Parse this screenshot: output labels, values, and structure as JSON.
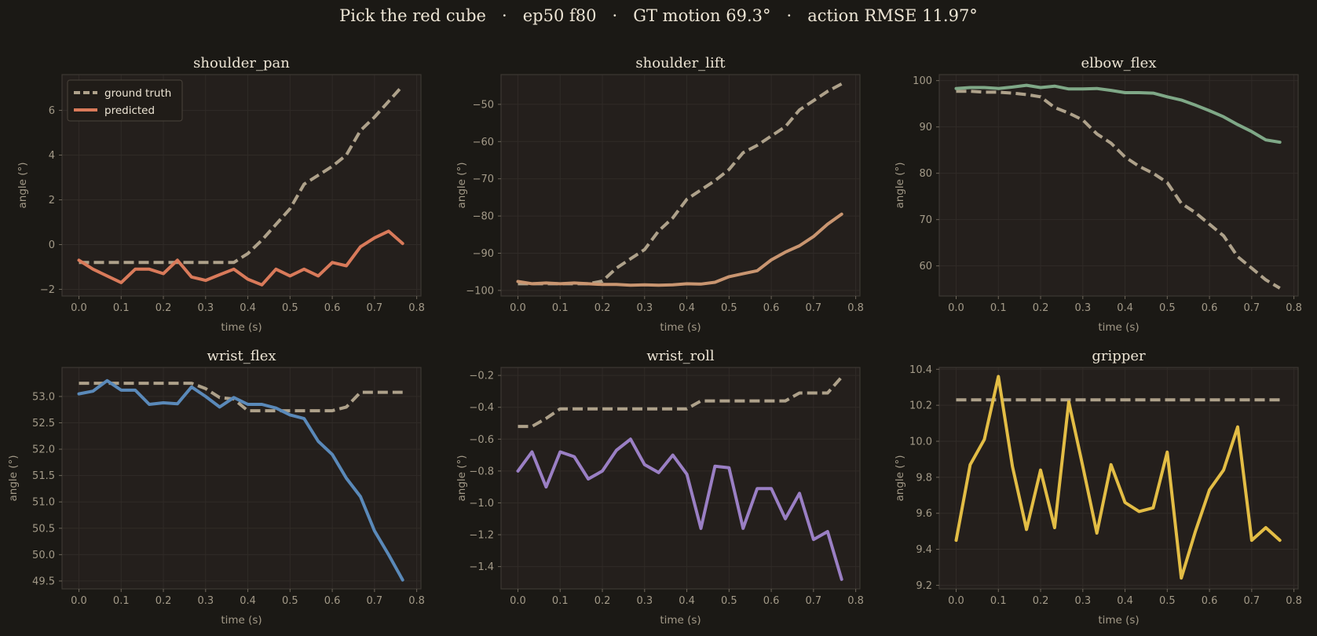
{
  "figure": {
    "suptitle": "Pick the red cube   ·   ep50 f80   ·   GT motion 69.3°   ·   action RMSE 11.97°"
  },
  "colors": {
    "figure_bg": "#1b1915",
    "axes_bg": "#241f1c",
    "spine": "#3d3833",
    "grid": "#302b27",
    "ground_truth": "#aea18a",
    "text": "#ece4d4",
    "muted_text": "#a39a88"
  },
  "legend": {
    "ground_truth": "ground truth",
    "predicted": "predicted"
  },
  "chart_data": [
    {
      "type": "line",
      "title": "shoulder_pan",
      "xlabel": "time (s)",
      "ylabel": "angle (°)",
      "xlim": [
        -0.04,
        0.81
      ],
      "ylim": [
        -2.3,
        7.6
      ],
      "xticks": [
        0.0,
        0.1,
        0.2,
        0.3,
        0.4,
        0.5,
        0.6,
        0.7,
        0.8
      ],
      "yticks": [
        -2,
        0,
        2,
        4,
        6
      ],
      "ytick_decimals": 0,
      "grid": true,
      "legend": "top-left",
      "series": [
        {
          "name": "ground truth",
          "role": "ground_truth",
          "color": "#aea18a",
          "style": "dashed",
          "x": [
            0.0,
            0.0333,
            0.0667,
            0.1,
            0.1333,
            0.1667,
            0.2,
            0.2333,
            0.2667,
            0.3,
            0.3333,
            0.3667,
            0.4,
            0.4333,
            0.4667,
            0.5,
            0.5333,
            0.5667,
            0.6,
            0.6333,
            0.6667,
            0.7,
            0.7333,
            0.7667
          ],
          "values": [
            -0.8,
            -0.8,
            -0.8,
            -0.8,
            -0.8,
            -0.8,
            -0.8,
            -0.8,
            -0.8,
            -0.8,
            -0.8,
            -0.8,
            -0.4,
            0.2,
            0.9,
            1.6,
            2.7,
            3.1,
            3.5,
            4.0,
            5.1,
            5.7,
            6.4,
            7.1
          ]
        },
        {
          "name": "predicted",
          "role": "predicted",
          "color": "#d97a5a",
          "style": "solid",
          "x": [
            0.0,
            0.0333,
            0.0667,
            0.1,
            0.1333,
            0.1667,
            0.2,
            0.2333,
            0.2667,
            0.3,
            0.3333,
            0.3667,
            0.4,
            0.4333,
            0.4667,
            0.5,
            0.5333,
            0.5667,
            0.6,
            0.6333,
            0.6667,
            0.7,
            0.7333,
            0.7667
          ],
          "values": [
            -0.7,
            -1.1,
            -1.4,
            -1.7,
            -1.1,
            -1.1,
            -1.3,
            -0.7,
            -1.45,
            -1.6,
            -1.35,
            -1.1,
            -1.55,
            -1.8,
            -1.1,
            -1.4,
            -1.1,
            -1.4,
            -0.8,
            -0.95,
            -0.1,
            0.3,
            0.6,
            0.05
          ]
        }
      ]
    },
    {
      "type": "line",
      "title": "shoulder_lift",
      "xlabel": "time (s)",
      "ylabel": "angle (°)",
      "xlim": [
        -0.04,
        0.81
      ],
      "ylim": [
        -101.5,
        -42
      ],
      "xticks": [
        0.0,
        0.1,
        0.2,
        0.3,
        0.4,
        0.5,
        0.6,
        0.7,
        0.8
      ],
      "yticks": [
        -100,
        -90,
        -80,
        -70,
        -60,
        -50
      ],
      "ytick_decimals": 0,
      "grid": true,
      "series": [
        {
          "name": "ground truth",
          "role": "ground_truth",
          "color": "#aea18a",
          "style": "dashed",
          "x": [
            0.0,
            0.0333,
            0.0667,
            0.1,
            0.1333,
            0.1667,
            0.2,
            0.2333,
            0.2667,
            0.3,
            0.3333,
            0.3667,
            0.4,
            0.4333,
            0.4667,
            0.5,
            0.5333,
            0.5667,
            0.6,
            0.6333,
            0.6667,
            0.7,
            0.7333,
            0.7667
          ],
          "values": [
            -98.2,
            -98.2,
            -98.2,
            -98.2,
            -98.2,
            -98.2,
            -97.5,
            -94.0,
            -91.5,
            -89.0,
            -84.0,
            -80.5,
            -75.5,
            -73.0,
            -70.5,
            -67.5,
            -63.0,
            -61.0,
            -58.5,
            -56.0,
            -51.5,
            -49.0,
            -46.5,
            -44.5
          ]
        },
        {
          "name": "predicted",
          "role": "predicted",
          "color": "#c99570",
          "style": "solid",
          "x": [
            0.0,
            0.0333,
            0.0667,
            0.1,
            0.1333,
            0.1667,
            0.2,
            0.2333,
            0.2667,
            0.3,
            0.3333,
            0.3667,
            0.4,
            0.4333,
            0.4667,
            0.5,
            0.5333,
            0.5667,
            0.6,
            0.6333,
            0.6667,
            0.7,
            0.7333,
            0.7667
          ],
          "values": [
            -97.6,
            -98.2,
            -98.0,
            -98.2,
            -98.0,
            -98.2,
            -98.4,
            -98.4,
            -98.6,
            -98.5,
            -98.6,
            -98.5,
            -98.2,
            -98.3,
            -97.8,
            -96.3,
            -95.5,
            -94.7,
            -91.8,
            -89.7,
            -88.0,
            -85.5,
            -82.2,
            -79.5
          ]
        }
      ]
    },
    {
      "type": "line",
      "title": "elbow_flex",
      "xlabel": "time (s)",
      "ylabel": "angle (°)",
      "xlim": [
        -0.04,
        0.81
      ],
      "ylim": [
        53.5,
        101.3
      ],
      "xticks": [
        0.0,
        0.1,
        0.2,
        0.3,
        0.4,
        0.5,
        0.6,
        0.7,
        0.8
      ],
      "yticks": [
        60,
        70,
        80,
        90,
        100
      ],
      "ytick_decimals": 0,
      "grid": true,
      "series": [
        {
          "name": "ground truth",
          "role": "ground_truth",
          "color": "#aea18a",
          "style": "dashed",
          "x": [
            0.0,
            0.0333,
            0.0667,
            0.1,
            0.1333,
            0.1667,
            0.2,
            0.2333,
            0.2667,
            0.3,
            0.3333,
            0.3667,
            0.4,
            0.4333,
            0.4667,
            0.5,
            0.5333,
            0.5667,
            0.6,
            0.6333,
            0.6667,
            0.7,
            0.7333,
            0.7667
          ],
          "values": [
            97.7,
            97.7,
            97.5,
            97.5,
            97.3,
            97.0,
            96.5,
            94.2,
            93.0,
            91.5,
            88.5,
            86.5,
            83.5,
            81.5,
            80.0,
            78.0,
            73.5,
            71.5,
            69.0,
            66.5,
            62.0,
            59.5,
            57.0,
            55.2
          ]
        },
        {
          "name": "predicted",
          "role": "predicted",
          "color": "#7fa887",
          "style": "solid",
          "x": [
            0.0,
            0.0333,
            0.0667,
            0.1,
            0.1333,
            0.1667,
            0.2,
            0.2333,
            0.2667,
            0.3,
            0.3333,
            0.3667,
            0.4,
            0.4333,
            0.4667,
            0.5,
            0.5333,
            0.5667,
            0.6,
            0.6333,
            0.6667,
            0.7,
            0.7333,
            0.7667
          ],
          "values": [
            98.3,
            98.5,
            98.5,
            98.3,
            98.6,
            99.0,
            98.5,
            98.8,
            98.2,
            98.2,
            98.3,
            97.9,
            97.4,
            97.4,
            97.3,
            96.5,
            95.8,
            94.7,
            93.5,
            92.2,
            90.5,
            89.0,
            87.2,
            86.7
          ]
        }
      ]
    },
    {
      "type": "line",
      "title": "wrist_flex",
      "xlabel": "time (s)",
      "ylabel": "angle (°)",
      "xlim": [
        -0.04,
        0.81
      ],
      "ylim": [
        49.35,
        53.55
      ],
      "xticks": [
        0.0,
        0.1,
        0.2,
        0.3,
        0.4,
        0.5,
        0.6,
        0.7,
        0.8
      ],
      "yticks": [
        49.5,
        50.0,
        50.5,
        51.0,
        51.5,
        52.0,
        52.5,
        53.0
      ],
      "ytick_decimals": 1,
      "grid": true,
      "series": [
        {
          "name": "ground truth",
          "role": "ground_truth",
          "color": "#aea18a",
          "style": "dashed",
          "x": [
            0.0,
            0.0333,
            0.0667,
            0.1,
            0.1333,
            0.1667,
            0.2,
            0.2333,
            0.2667,
            0.3,
            0.3333,
            0.3667,
            0.4,
            0.4333,
            0.4667,
            0.5,
            0.5333,
            0.5667,
            0.6,
            0.6333,
            0.6667,
            0.7,
            0.7333,
            0.7667
          ],
          "values": [
            53.25,
            53.25,
            53.25,
            53.25,
            53.25,
            53.25,
            53.25,
            53.25,
            53.25,
            53.15,
            52.98,
            52.95,
            52.73,
            52.73,
            52.73,
            52.73,
            52.73,
            52.73,
            52.73,
            52.8,
            53.08,
            53.08,
            53.08,
            53.08
          ]
        },
        {
          "name": "predicted",
          "role": "predicted",
          "color": "#5a89b9",
          "style": "solid",
          "x": [
            0.0,
            0.0333,
            0.0667,
            0.1,
            0.1333,
            0.1667,
            0.2,
            0.2333,
            0.2667,
            0.3,
            0.3333,
            0.3667,
            0.4,
            0.4333,
            0.4667,
            0.5,
            0.5333,
            0.5667,
            0.6,
            0.6333,
            0.6667,
            0.7,
            0.7333,
            0.7667
          ],
          "values": [
            53.05,
            53.1,
            53.3,
            53.12,
            53.12,
            52.85,
            52.88,
            52.86,
            53.18,
            53.0,
            52.8,
            52.98,
            52.85,
            52.85,
            52.78,
            52.65,
            52.58,
            52.15,
            51.9,
            51.45,
            51.1,
            50.45,
            50.0,
            49.52
          ]
        }
      ]
    },
    {
      "type": "line",
      "title": "wrist_roll",
      "xlabel": "time (s)",
      "ylabel": "angle (°)",
      "xlim": [
        -0.04,
        0.81
      ],
      "ylim": [
        -1.54,
        -0.15
      ],
      "xticks": [
        0.0,
        0.1,
        0.2,
        0.3,
        0.4,
        0.5,
        0.6,
        0.7,
        0.8
      ],
      "yticks": [
        -1.4,
        -1.2,
        -1.0,
        -0.8,
        -0.6,
        -0.4,
        -0.2
      ],
      "ytick_decimals": 1,
      "grid": true,
      "series": [
        {
          "name": "ground truth",
          "role": "ground_truth",
          "color": "#aea18a",
          "style": "dashed",
          "x": [
            0.0,
            0.0333,
            0.0667,
            0.1,
            0.1333,
            0.1667,
            0.2,
            0.2333,
            0.2667,
            0.3,
            0.3333,
            0.3667,
            0.4,
            0.4333,
            0.4667,
            0.5,
            0.5333,
            0.5667,
            0.6,
            0.6333,
            0.6667,
            0.7,
            0.7333,
            0.7667
          ],
          "values": [
            -0.52,
            -0.52,
            -0.47,
            -0.41,
            -0.41,
            -0.41,
            -0.41,
            -0.41,
            -0.41,
            -0.41,
            -0.41,
            -0.41,
            -0.41,
            -0.36,
            -0.36,
            -0.36,
            -0.36,
            -0.36,
            -0.36,
            -0.36,
            -0.31,
            -0.31,
            -0.31,
            -0.21
          ]
        },
        {
          "name": "predicted",
          "role": "predicted",
          "color": "#9a7fc4",
          "style": "solid",
          "x": [
            0.0,
            0.0333,
            0.0667,
            0.1,
            0.1333,
            0.1667,
            0.2,
            0.2333,
            0.2667,
            0.3,
            0.3333,
            0.3667,
            0.4,
            0.4333,
            0.4667,
            0.5,
            0.5333,
            0.5667,
            0.6,
            0.6333,
            0.6667,
            0.7,
            0.7333,
            0.7667
          ],
          "values": [
            -0.8,
            -0.68,
            -0.9,
            -0.68,
            -0.71,
            -0.85,
            -0.8,
            -0.67,
            -0.6,
            -0.76,
            -0.81,
            -0.7,
            -0.82,
            -1.16,
            -0.77,
            -0.78,
            -1.16,
            -0.91,
            -0.91,
            -1.1,
            -0.94,
            -1.23,
            -1.18,
            -1.48
          ]
        }
      ]
    },
    {
      "type": "line",
      "title": "gripper",
      "xlabel": "time (s)",
      "ylabel": "angle (°)",
      "xlim": [
        -0.04,
        0.81
      ],
      "ylim": [
        9.18,
        10.41
      ],
      "xticks": [
        0.0,
        0.1,
        0.2,
        0.3,
        0.4,
        0.5,
        0.6,
        0.7,
        0.8
      ],
      "yticks": [
        9.2,
        9.4,
        9.6,
        9.8,
        10.0,
        10.2,
        10.4
      ],
      "ytick_decimals": 1,
      "grid": true,
      "series": [
        {
          "name": "ground truth",
          "role": "ground_truth",
          "color": "#aea18a",
          "style": "dashed",
          "x": [
            0.0,
            0.0333,
            0.0667,
            0.1,
            0.1333,
            0.1667,
            0.2,
            0.2333,
            0.2667,
            0.3,
            0.3333,
            0.3667,
            0.4,
            0.4333,
            0.4667,
            0.5,
            0.5333,
            0.5667,
            0.6,
            0.6333,
            0.6667,
            0.7,
            0.7333,
            0.7667
          ],
          "values": [
            10.23,
            10.23,
            10.23,
            10.23,
            10.23,
            10.23,
            10.23,
            10.23,
            10.23,
            10.23,
            10.23,
            10.23,
            10.23,
            10.23,
            10.23,
            10.23,
            10.23,
            10.23,
            10.23,
            10.23,
            10.23,
            10.23,
            10.23,
            10.23
          ]
        },
        {
          "name": "predicted",
          "role": "predicted",
          "color": "#e3bd45",
          "style": "solid",
          "x": [
            0.0,
            0.0333,
            0.0667,
            0.1,
            0.1333,
            0.1667,
            0.2,
            0.2333,
            0.2667,
            0.3,
            0.3333,
            0.3667,
            0.4,
            0.4333,
            0.4667,
            0.5,
            0.5333,
            0.5667,
            0.6,
            0.6333,
            0.6667,
            0.7,
            0.7333,
            0.7667
          ],
          "values": [
            9.45,
            9.87,
            10.01,
            10.36,
            9.86,
            9.51,
            9.84,
            9.52,
            10.22,
            9.86,
            9.49,
            9.87,
            9.66,
            9.61,
            9.63,
            9.94,
            9.24,
            9.5,
            9.73,
            9.84,
            10.08,
            9.45,
            9.52,
            9.45
          ]
        }
      ]
    }
  ]
}
